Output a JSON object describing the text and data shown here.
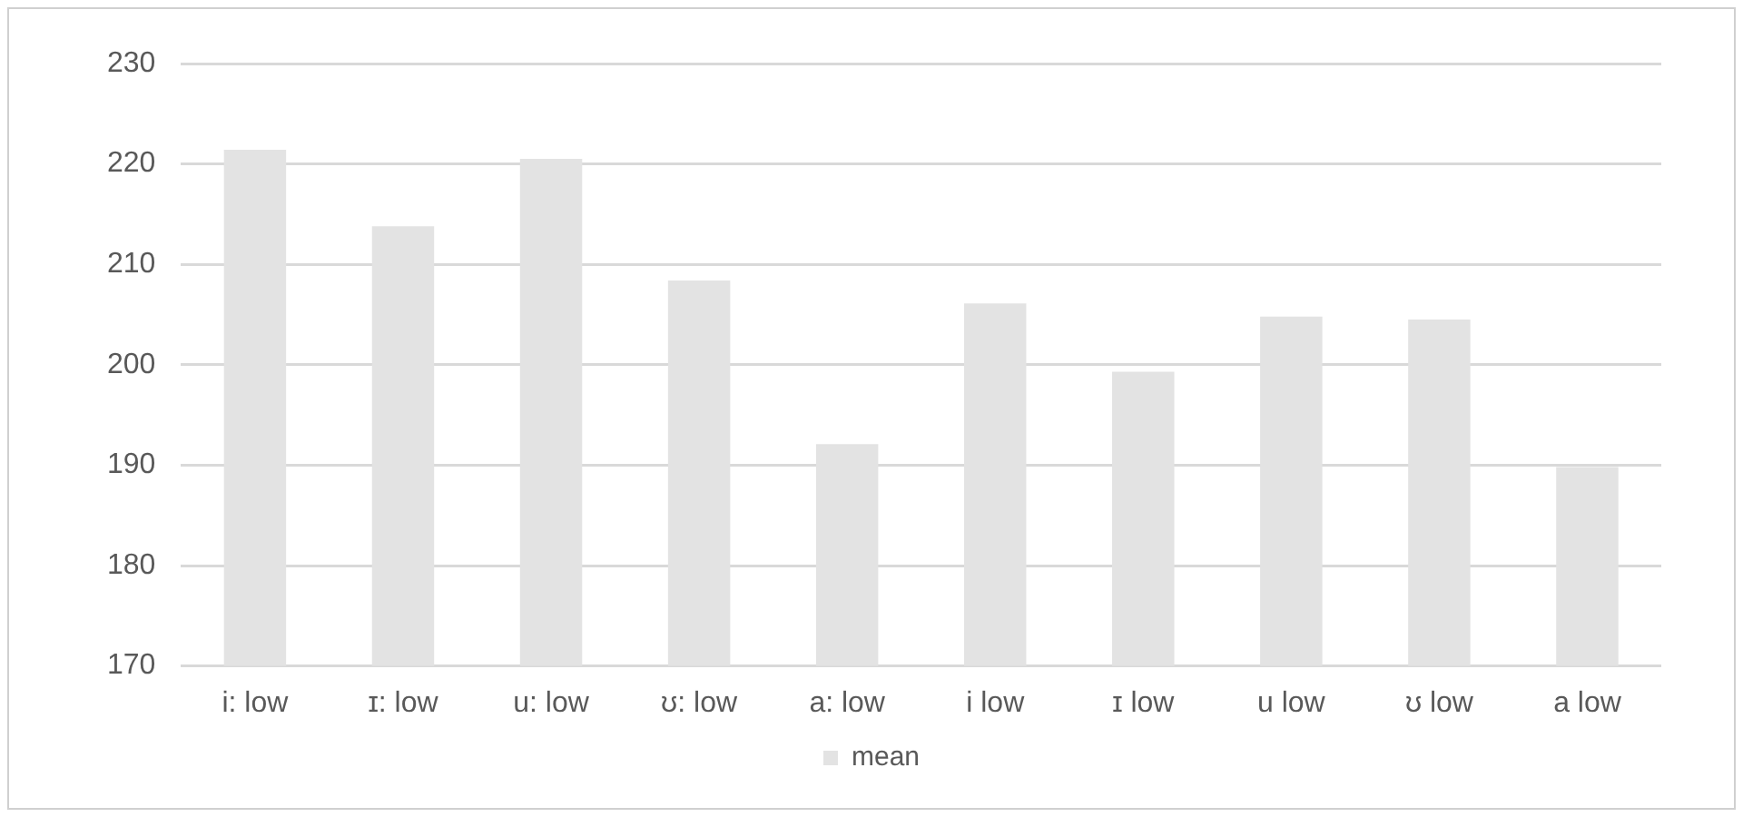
{
  "chart_data": {
    "type": "bar",
    "categories": [
      "i: low",
      "ɪ: low",
      "u: low",
      "ʊ: low",
      "a: low",
      "i low",
      "ɪ low",
      "u low",
      "ʊ low",
      "a low"
    ],
    "series": [
      {
        "name": "mean",
        "color": "#e3e3e3",
        "values": [
          221.4,
          213.8,
          220.5,
          208.4,
          192.1,
          206.1,
          199.3,
          204.8,
          204.5,
          189.8
        ]
      }
    ],
    "ylim": [
      170,
      230
    ],
    "yticks": [
      170,
      180,
      190,
      200,
      210,
      220,
      230
    ],
    "grid": "y",
    "legend": "bottom"
  }
}
